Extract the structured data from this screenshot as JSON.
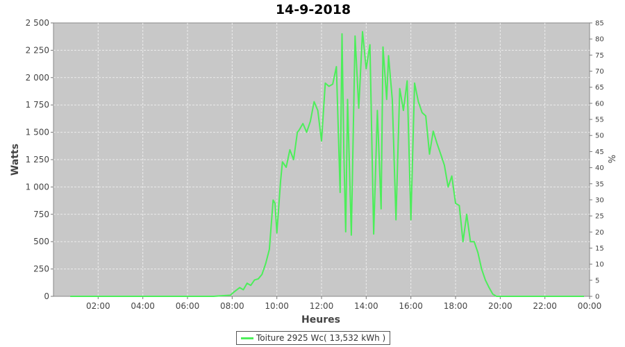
{
  "chart_data": {
    "type": "line",
    "title": "14-9-2018",
    "xlabel": "Heures",
    "ylabel": "Watts",
    "ylabel_right": "%",
    "xlim": [
      "00:00",
      "24:00"
    ],
    "ylim": [
      0,
      2500
    ],
    "ylim_right": [
      0,
      85
    ],
    "x_ticks": [
      "02:00",
      "04:00",
      "06:00",
      "08:00",
      "10:00",
      "12:00",
      "14:00",
      "16:00",
      "18:00",
      "20:00",
      "22:00",
      "00:00"
    ],
    "y_ticks": [
      "0",
      "250",
      "500",
      "750",
      "1 000",
      "1 250",
      "1 500",
      "1 750",
      "2 000",
      "2 250",
      "2 500"
    ],
    "y_ticks_right": [
      "0",
      "5",
      "10",
      "15",
      "20",
      "25",
      "30",
      "35",
      "40",
      "45",
      "50",
      "55",
      "60",
      "65",
      "70",
      "75",
      "80",
      "85"
    ],
    "grid": true,
    "legend_position": "bottom-center",
    "colors": {
      "plot_background": "#c8c8c8",
      "series": "#4cee5a",
      "grid": "#ececec"
    },
    "series": [
      {
        "name": "Toiture 2925 Wc( 13,532 kWh )",
        "x": [
          "00:45",
          "07:10",
          "07:30",
          "07:55",
          "08:05",
          "08:20",
          "08:30",
          "08:40",
          "08:50",
          "09:00",
          "09:10",
          "09:20",
          "09:30",
          "09:40",
          "09:50",
          "09:55",
          "10:00",
          "10:10",
          "10:15",
          "10:25",
          "10:35",
          "10:45",
          "10:55",
          "11:00",
          "11:10",
          "11:20",
          "11:30",
          "11:40",
          "11:50",
          "12:00",
          "12:10",
          "12:20",
          "12:30",
          "12:40",
          "12:50",
          "12:55",
          "13:00",
          "13:05",
          "13:10",
          "13:20",
          "13:30",
          "13:40",
          "13:50",
          "14:00",
          "14:10",
          "14:20",
          "14:30",
          "14:40",
          "14:45",
          "14:55",
          "15:00",
          "15:10",
          "15:20",
          "15:30",
          "15:40",
          "15:50",
          "16:00",
          "16:10",
          "16:20",
          "16:30",
          "16:40",
          "16:50",
          "17:00",
          "17:10",
          "17:20",
          "17:30",
          "17:40",
          "17:50",
          "18:00",
          "18:10",
          "18:20",
          "18:30",
          "18:40",
          "18:50",
          "19:00",
          "19:10",
          "19:20",
          "19:30",
          "19:40",
          "19:50",
          "20:00",
          "23:45"
        ],
        "values": [
          0,
          0,
          5,
          10,
          40,
          80,
          60,
          120,
          100,
          150,
          160,
          200,
          300,
          430,
          880,
          850,
          580,
          1050,
          1230,
          1180,
          1340,
          1250,
          1500,
          1520,
          1580,
          1500,
          1600,
          1780,
          1700,
          1420,
          1950,
          1920,
          1940,
          2100,
          950,
          2400,
          1300,
          590,
          1800,
          560,
          2380,
          1720,
          2420,
          2080,
          2300,
          570,
          1700,
          800,
          2280,
          1800,
          2200,
          1800,
          700,
          1900,
          1700,
          1970,
          700,
          1950,
          1780,
          1680,
          1650,
          1300,
          1510,
          1400,
          1300,
          1200,
          1000,
          1100,
          850,
          830,
          500,
          750,
          500,
          500,
          400,
          250,
          150,
          80,
          20,
          0,
          0,
          0
        ]
      }
    ]
  }
}
